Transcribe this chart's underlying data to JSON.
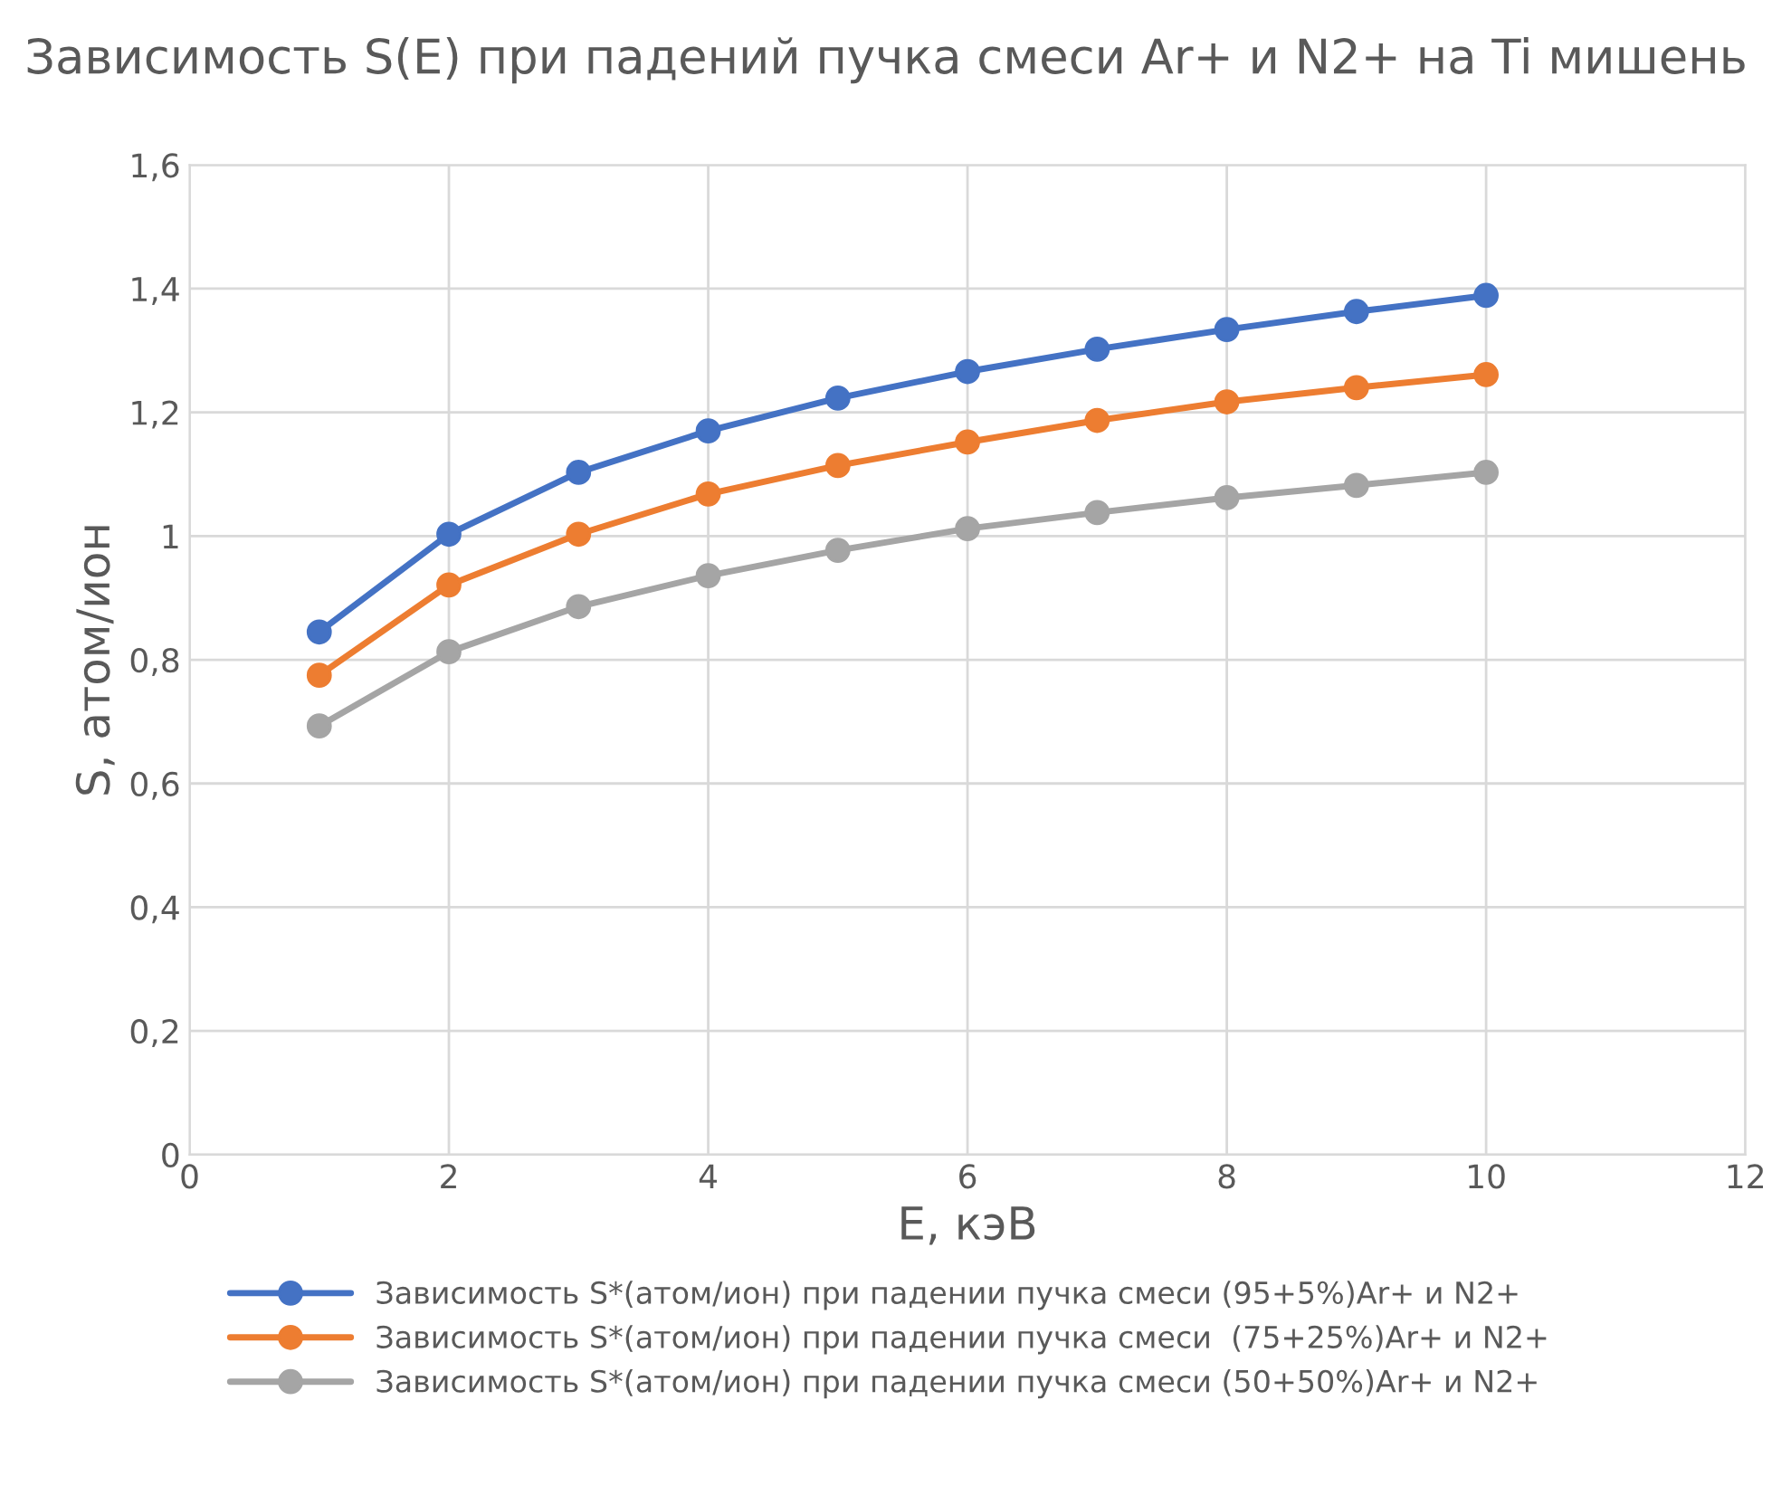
{
  "chart_data": {
    "type": "line",
    "title": "Зависимость S(E) при падений пучка смеси Ar+ и N2+ на Ti мишень",
    "xlabel": "E, кэВ",
    "ylabel": "S, атом/ион",
    "x": [
      1,
      2,
      3,
      4,
      5,
      6,
      7,
      8,
      9,
      10
    ],
    "series": [
      {
        "name": "Зависимость S*(атом/ион) при падении пучка смеси (95+5%)Ar+ и N2+",
        "color": "#4472c4",
        "values": [
          0.845,
          1.003,
          1.103,
          1.17,
          1.223,
          1.266,
          1.302,
          1.334,
          1.363,
          1.389
        ]
      },
      {
        "name": "Зависимость S*(атом/ион) при падении пучка смеси  (75+25%)Ar+ и N2+",
        "color": "#ed7d31",
        "values": [
          0.775,
          0.921,
          1.003,
          1.068,
          1.114,
          1.152,
          1.187,
          1.217,
          1.24,
          1.261
        ]
      },
      {
        "name": "Зависимость S*(атом/ион) при падении пучка смеси (50+50%)Ar+ и N2+",
        "color": "#a5a5a5",
        "values": [
          0.693,
          0.813,
          0.886,
          0.936,
          0.977,
          1.012,
          1.038,
          1.062,
          1.082,
          1.103
        ]
      }
    ],
    "xlim": [
      0,
      12
    ],
    "xticks": [
      0,
      2,
      4,
      6,
      8,
      10,
      12
    ],
    "ylim": [
      0,
      1.6
    ],
    "yticks": [
      0,
      {
        "value": 0.2,
        "label": "0,2"
      },
      {
        "value": 0.4,
        "label": "0,4"
      },
      {
        "value": 0.6,
        "label": "0,6"
      },
      {
        "value": 0.8,
        "label": "0,8"
      },
      1,
      {
        "value": 1.2,
        "label": "1,2"
      },
      {
        "value": 1.4,
        "label": "1,4"
      },
      {
        "value": 1.6,
        "label": "1,6"
      }
    ],
    "grid": true,
    "legend": "bottom",
    "marker": "circle",
    "line_style": "solid"
  }
}
